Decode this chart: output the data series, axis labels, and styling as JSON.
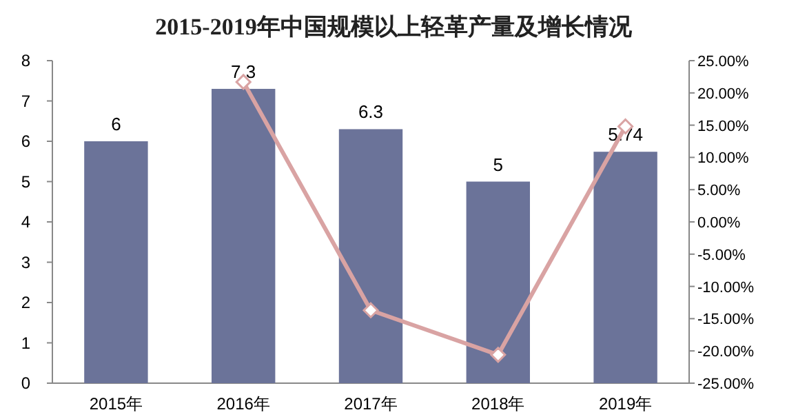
{
  "chart_data": {
    "type": "bar",
    "title": "2015-2019年中国规模以上轻革产量及增长情况",
    "categories": [
      "2015年",
      "2016年",
      "2017年",
      "2018年",
      "2019年"
    ],
    "series": [
      {
        "color": "#6b7399",
        "values": [
          6,
          7.3,
          6.3,
          5,
          5.74
        ],
        "value_labels": [
          "6",
          "7.3",
          "6.3",
          "5",
          "5.74"
        ]
      },
      {
        "type": "line",
        "axis": "y2",
        "color": "#d9a3a3",
        "marker": "diamond",
        "values": [
          null,
          21.7,
          -13.7,
          -20.6,
          14.8
        ]
      }
    ],
    "ylim": [
      0,
      8
    ],
    "yticks": [
      0,
      1,
      2,
      3,
      4,
      5,
      6,
      7,
      8
    ],
    "y2lim": [
      -25,
      25
    ],
    "y2ticks": [
      {
        "value": -25,
        "label": "-25.00%"
      },
      {
        "value": -20,
        "label": "-20.00%"
      },
      {
        "value": -15,
        "label": "-15.00%"
      },
      {
        "value": -10,
        "label": "-10.00%"
      },
      {
        "value": -5,
        "label": "-5.00%"
      },
      {
        "value": 0,
        "label": "0.00%"
      },
      {
        "value": 5,
        "label": "5.00%"
      },
      {
        "value": 10,
        "label": "10.00%"
      },
      {
        "value": 15,
        "label": "15.00%"
      },
      {
        "value": 20,
        "label": "20.00%"
      },
      {
        "value": 25,
        "label": "25.00%"
      }
    ],
    "grid": false
  }
}
